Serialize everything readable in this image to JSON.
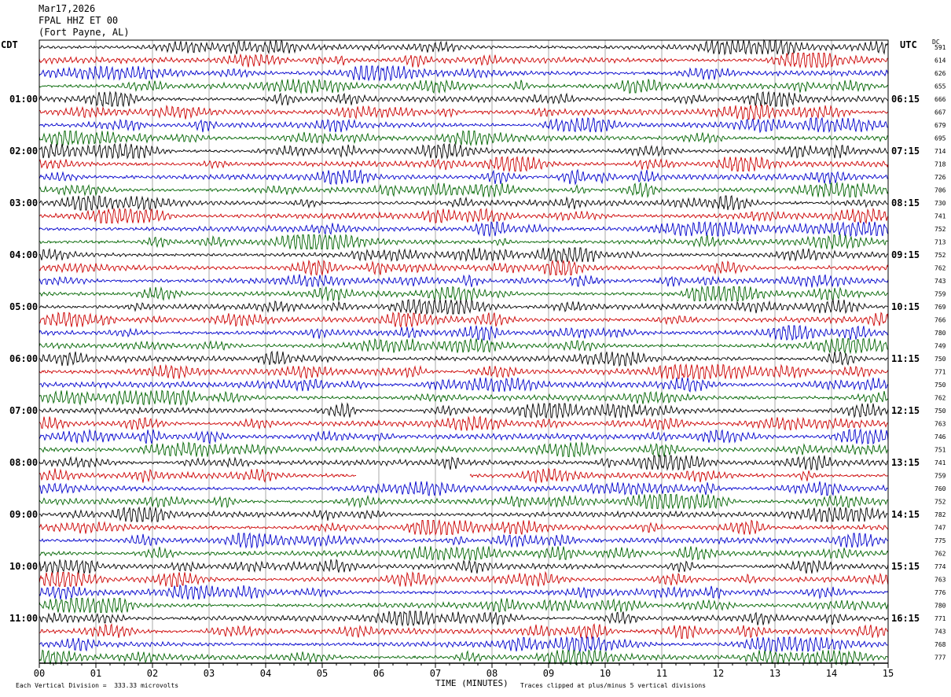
{
  "header": {
    "date": "Mar17,2026",
    "station": "FPAL HHZ ET 00",
    "location": "(Fort Payne, AL)"
  },
  "left_tz": "CDT",
  "right_tz": "UTC",
  "dc_label": "DC",
  "footer": {
    "scale": "Each Vertical Division =  333.33 microvolts",
    "xlabel": "TIME (MINUTES)",
    "clip_note": "Traces clipped at plus/minus 5 vertical divisions"
  },
  "colors": {
    "cycle": [
      "#000000",
      "#cc0000",
      "#0000cc",
      "#006400"
    ],
    "gridline": "#aaaaaa"
  },
  "chart_data": {
    "type": "line",
    "subtype": "helicorder",
    "xlabel": "TIME (MINUTES)",
    "xlim": [
      0,
      15
    ],
    "x_ticks": [
      "00",
      "01",
      "02",
      "03",
      "04",
      "05",
      "06",
      "07",
      "08",
      "09",
      "10",
      "11",
      "12",
      "13",
      "14",
      "15"
    ],
    "rows": 48,
    "left_hour_labels": [
      "01:00",
      "02:00",
      "03:00",
      "04:00",
      "05:00",
      "06:00",
      "07:00",
      "08:00",
      "09:00",
      "10:00",
      "11:00"
    ],
    "right_hour_labels": [
      "06:15",
      "07:15",
      "08:15",
      "09:15",
      "10:15",
      "11:15",
      "12:15",
      "13:15",
      "14:15",
      "15:15",
      "16:15"
    ],
    "hour_label_first_row": 4,
    "hour_label_every_rows": 4,
    "dc_offsets": [
      591,
      614,
      626,
      655,
      666,
      667,
      679,
      695,
      714,
      718,
      726,
      706,
      730,
      741,
      752,
      713,
      752,
      762,
      743,
      759,
      769,
      766,
      780,
      749,
      750,
      771,
      750,
      762,
      750,
      763,
      746,
      751,
      741,
      759,
      760,
      752,
      782,
      747,
      775,
      762,
      774,
      763,
      776,
      780,
      771,
      743,
      768,
      777
    ],
    "gap": {
      "row": 33,
      "from_minute": 5.6,
      "to_minute": 7.6
    }
  }
}
